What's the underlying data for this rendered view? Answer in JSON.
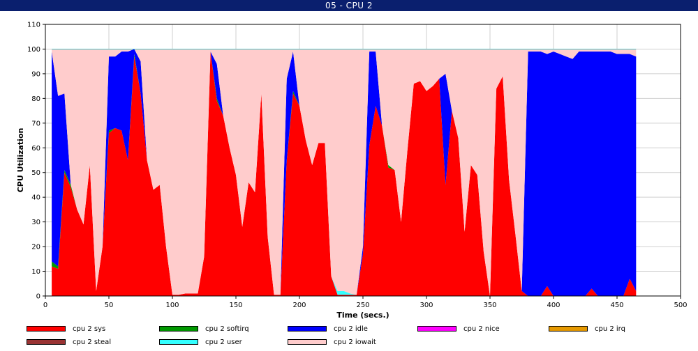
{
  "window": {
    "title": "05 - CPU 2"
  },
  "colors": {
    "sys": "#ff0000",
    "softirq": "#009900",
    "idle": "#0000ff",
    "nice": "#ff00ff",
    "irq": "#e69900",
    "steal": "#993333",
    "user": "#33ffff",
    "iowait": "#ffcccc"
  },
  "chart_data": {
    "type": "area",
    "stacked": true,
    "title": "",
    "xlabel": "Time (secs.)",
    "ylabel": "CPU Utilization",
    "xlim": [
      0,
      500
    ],
    "ylim": [
      0,
      110
    ],
    "x_ticks": [
      "0",
      "50",
      "100",
      "150",
      "200",
      "250",
      "300",
      "350",
      "400",
      "450",
      "500"
    ],
    "y_ticks": [
      "0",
      "10",
      "20",
      "30",
      "40",
      "50",
      "60",
      "70",
      "80",
      "90",
      "100",
      "110"
    ],
    "grid": true,
    "legend_position": "bottom",
    "legend": [
      {
        "key": "sys",
        "label": "cpu 2 sys"
      },
      {
        "key": "softirq",
        "label": "cpu 2 softirq"
      },
      {
        "key": "idle",
        "label": "cpu 2 idle"
      },
      {
        "key": "nice",
        "label": "cpu 2 nice"
      },
      {
        "key": "irq",
        "label": "cpu 2 irq"
      },
      {
        "key": "steal",
        "label": "cpu 2 steal"
      },
      {
        "key": "user",
        "label": "cpu 2 user"
      },
      {
        "key": "iowait",
        "label": "cpu 2 iowait"
      }
    ],
    "x": [
      5,
      10,
      15,
      20,
      25,
      30,
      35,
      40,
      45,
      50,
      55,
      60,
      65,
      70,
      75,
      80,
      85,
      90,
      95,
      100,
      105,
      110,
      115,
      120,
      125,
      130,
      135,
      140,
      145,
      150,
      155,
      160,
      165,
      170,
      175,
      180,
      185,
      190,
      195,
      200,
      205,
      210,
      215,
      220,
      225,
      230,
      235,
      240,
      245,
      250,
      255,
      260,
      265,
      270,
      275,
      280,
      285,
      290,
      295,
      300,
      305,
      310,
      315,
      320,
      325,
      330,
      335,
      340,
      345,
      350,
      355,
      360,
      365,
      370,
      375,
      380,
      385,
      390,
      395,
      400,
      405,
      410,
      415,
      420,
      425,
      430,
      435,
      440,
      445,
      450,
      455,
      460,
      465
    ],
    "series": [
      {
        "key": "sys",
        "values": [
          12,
          11,
          50,
          44,
          35,
          29,
          53,
          2,
          20,
          66,
          68,
          67,
          55,
          97,
          82,
          55,
          43,
          45,
          20,
          0.5,
          0.5,
          1,
          1,
          1,
          16,
          99,
          79,
          73,
          60,
          49,
          28,
          46,
          42,
          82,
          24,
          0.5,
          0.5,
          55,
          82,
          77,
          63,
          53,
          62,
          62,
          8,
          0.5,
          0.5,
          0.5,
          0.5,
          17,
          61,
          77,
          69,
          52,
          51,
          30,
          59,
          86,
          87,
          83,
          85,
          88,
          45,
          75,
          64,
          26,
          53,
          49,
          18,
          0,
          84,
          89,
          47,
          25,
          2,
          0,
          0,
          0,
          4,
          0,
          0,
          0,
          0,
          0,
          0,
          3,
          0,
          0,
          0,
          0,
          0,
          7,
          2
        ]
      },
      {
        "key": "softirq",
        "values": [
          2,
          1,
          1,
          1,
          0,
          0,
          0,
          0,
          0,
          1,
          0,
          0,
          0,
          1,
          0,
          0,
          0,
          0,
          0,
          0,
          0,
          0,
          0,
          0,
          0,
          0,
          1,
          0,
          0,
          0,
          0,
          0,
          0,
          0,
          0,
          0,
          0,
          0,
          1,
          0,
          0,
          0,
          0,
          0,
          0,
          0,
          0,
          0,
          0,
          0,
          0,
          0,
          0,
          1,
          0,
          0,
          0,
          0,
          0,
          0,
          0,
          0,
          0,
          0,
          0,
          0,
          0,
          0,
          0,
          0,
          0,
          0,
          0,
          0,
          0,
          0,
          0,
          0,
          0,
          0,
          0,
          0,
          0,
          0,
          0,
          0,
          0,
          0,
          0,
          0,
          0,
          0,
          0
        ]
      },
      {
        "key": "idle",
        "values": [
          85,
          69,
          31,
          0,
          0,
          0,
          0,
          0,
          0,
          30,
          29,
          32,
          44,
          2,
          13,
          0,
          0,
          0,
          0,
          0,
          0,
          0,
          0,
          0,
          0,
          0,
          14,
          0,
          0,
          0,
          0,
          0,
          0,
          0,
          0,
          0,
          0,
          33,
          16,
          0,
          0,
          0,
          0,
          0,
          0,
          0,
          0,
          0,
          0,
          3,
          38,
          22,
          0,
          0,
          0,
          0,
          0,
          0,
          0,
          0,
          0,
          0,
          45,
          0,
          0,
          0,
          0,
          0,
          0,
          0,
          0,
          0,
          0,
          0,
          0,
          99,
          99,
          99,
          94,
          99,
          98,
          97,
          96,
          99,
          99,
          96,
          99,
          99,
          99,
          98,
          98,
          91,
          95
        ]
      },
      {
        "key": "nice",
        "values": [
          0,
          0,
          0,
          0,
          0,
          0,
          0,
          0,
          0,
          0,
          0,
          0,
          0,
          0,
          0,
          0,
          0,
          0,
          0,
          0,
          0,
          0,
          0,
          0,
          0,
          0,
          0,
          0,
          0,
          0,
          0,
          0,
          0,
          0,
          0,
          0,
          0,
          0,
          0,
          0,
          0,
          0,
          0,
          0,
          0,
          0,
          0,
          0,
          0,
          0,
          0,
          0,
          0,
          0,
          0,
          0,
          0,
          0,
          0,
          0,
          0,
          0,
          0,
          0,
          0,
          0,
          0,
          0,
          0,
          0,
          0,
          0,
          0,
          0,
          0,
          0,
          0,
          0,
          0,
          0,
          0,
          0,
          0,
          0,
          0,
          0,
          0,
          0,
          0,
          0,
          0,
          0,
          0
        ]
      },
      {
        "key": "irq",
        "values": [
          0,
          0,
          0,
          0,
          0,
          0,
          0,
          0,
          0,
          0,
          0,
          0,
          0,
          0,
          0,
          0,
          0,
          0,
          0,
          0,
          0,
          0,
          0,
          0,
          0,
          0,
          0,
          0,
          0,
          0,
          0,
          0,
          0,
          0,
          0,
          0,
          0,
          0,
          0,
          0,
          0,
          0,
          0,
          0,
          0,
          0,
          0,
          0,
          0,
          0,
          0,
          0,
          0,
          0,
          0,
          0,
          0,
          0,
          0,
          0,
          0,
          0,
          0,
          0,
          0,
          0,
          0,
          0,
          0,
          0,
          0,
          0,
          0,
          0,
          0,
          0,
          0,
          0,
          0,
          0,
          0,
          0,
          0,
          0,
          0,
          0,
          0,
          0,
          0,
          0,
          0,
          0,
          0
        ]
      },
      {
        "key": "steal",
        "values": [
          0,
          0,
          0,
          0,
          0,
          0,
          0,
          0,
          0,
          0,
          0,
          0,
          0,
          0,
          0,
          0,
          0,
          0,
          0,
          0,
          0,
          0,
          0,
          0,
          0,
          0,
          0,
          0,
          0,
          0,
          0,
          0,
          0,
          0,
          0,
          0,
          0,
          0,
          0,
          0,
          0,
          0,
          0,
          0,
          0,
          0,
          0,
          0,
          0,
          0,
          0,
          0,
          0,
          0,
          0,
          0,
          0,
          0,
          0,
          0,
          0,
          0,
          0,
          0,
          0,
          0,
          0,
          0,
          0,
          0,
          0,
          0,
          0,
          0,
          0,
          0,
          0,
          0,
          0,
          0,
          0,
          0,
          0,
          0,
          0,
          0,
          0,
          0,
          0,
          0,
          0,
          0,
          0
        ]
      },
      {
        "key": "user",
        "values": [
          0,
          0,
          0,
          0,
          0,
          0,
          0,
          0,
          0,
          0,
          0,
          0,
          0,
          0,
          0,
          0,
          0,
          0,
          0,
          0,
          0,
          0,
          0,
          0,
          0,
          0,
          0,
          0,
          0,
          0,
          0,
          0,
          0,
          0,
          0,
          0,
          0,
          0,
          0,
          0,
          0,
          0,
          0,
          0,
          0,
          1.5,
          1.5,
          0.5,
          0,
          0,
          0,
          0,
          0,
          0,
          0,
          0,
          0,
          0,
          0,
          0,
          0,
          0,
          0,
          0,
          0,
          0,
          0,
          0,
          0,
          0,
          0,
          0,
          0,
          0,
          0,
          0,
          0,
          0,
          0,
          0,
          0,
          0,
          0,
          0,
          0,
          0,
          0,
          0,
          0,
          0,
          0,
          0,
          0
        ]
      },
      {
        "key": "iowait",
        "values": [
          1,
          19,
          18,
          55,
          65,
          71,
          47,
          98,
          80,
          3,
          3,
          1,
          1,
          0,
          5,
          45,
          57,
          55,
          80,
          99.5,
          99.5,
          99,
          99,
          99,
          84,
          1,
          6,
          27,
          40,
          51,
          72,
          54,
          58,
          18,
          76,
          99.5,
          99.5,
          12,
          1,
          23,
          37,
          47,
          38,
          38,
          92,
          98,
          98,
          99,
          99.5,
          80,
          1,
          1,
          31,
          47,
          49,
          70,
          41,
          14,
          13,
          17,
          15,
          12,
          10,
          25,
          36,
          74,
          47,
          51,
          82,
          100,
          16,
          11,
          53,
          75,
          98,
          1,
          1,
          1,
          2,
          1,
          2,
          3,
          4,
          1,
          1,
          1,
          1,
          1,
          1,
          2,
          2,
          2,
          3
        ]
      }
    ]
  }
}
